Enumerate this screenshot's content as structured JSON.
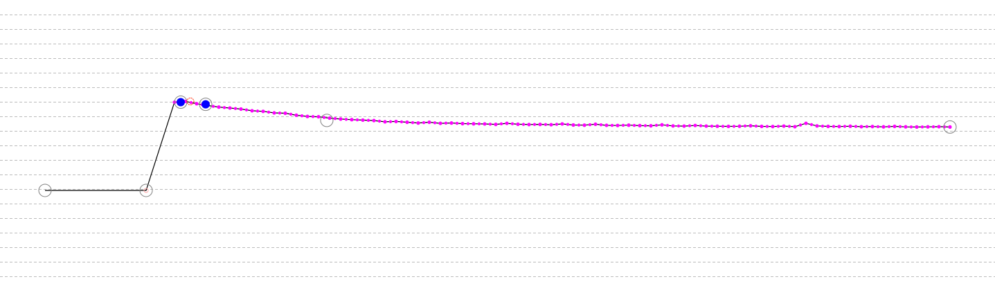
{
  "chart_data": {
    "type": "line",
    "title": "",
    "xlabel": "",
    "ylabel": "",
    "grid": "horizontal-dashed",
    "grid_count": 19,
    "xlim": [
      -6.5,
      137.2
    ],
    "ylim": [
      -6.0,
      12.67
    ],
    "colors": {
      "line": "#000000",
      "points": "#ff00ff",
      "highlight": "#0000ff",
      "ring": "#808080",
      "red_ring": "#ff2200",
      "grid": "#bbbbbb"
    },
    "series": [
      {
        "x": [
          0,
          14.6,
          18.7,
          20.3,
          21.9,
          23.5,
          25.1,
          26.7,
          28.3,
          29.9,
          31.5,
          33.1,
          34.7,
          36.3,
          37.9,
          39.5,
          41.1,
          42.7,
          44.3,
          45.9,
          47.5,
          49.1,
          50.7,
          52.3,
          53.9,
          55.5,
          57.1,
          58.7,
          60.3,
          61.9,
          63.5,
          65.1,
          66.7,
          68.3,
          69.9,
          71.5,
          73.1,
          74.7,
          76.3,
          77.9,
          79.5,
          81.1,
          82.7,
          84.3,
          85.9,
          87.5,
          89.1,
          90.7,
          92.3,
          93.9,
          95.5,
          97.1,
          98.7,
          100.3,
          101.9,
          103.5,
          105.1,
          106.7,
          108.3,
          109.9,
          111.5,
          113.1,
          114.7,
          116.3,
          117.9,
          119.5,
          121.1,
          122.7,
          124.3,
          125.9,
          127.5,
          129.1,
          130.7
        ],
        "y": [
          0.24,
          0.24,
          6.0,
          6.05,
          5.9,
          5.78,
          5.68,
          5.62,
          5.55,
          5.44,
          5.4,
          5.3,
          5.28,
          5.15,
          5.07,
          5.05,
          4.96,
          4.9,
          4.86,
          4.83,
          4.8,
          4.72,
          4.74,
          4.69,
          4.64,
          4.69,
          4.62,
          4.64,
          4.6,
          4.59,
          4.58,
          4.55,
          4.62,
          4.56,
          4.54,
          4.55,
          4.53,
          4.58,
          4.51,
          4.5,
          4.56,
          4.49,
          4.48,
          4.5,
          4.47,
          4.46,
          4.52,
          4.45,
          4.44,
          4.48,
          4.44,
          4.43,
          4.42,
          4.43,
          4.46,
          4.42,
          4.41,
          4.44,
          4.4,
          4.62,
          4.45,
          4.42,
          4.41,
          4.43,
          4.4,
          4.41,
          4.39,
          4.42,
          4.39,
          4.38,
          4.39,
          4.4,
          4.38
        ]
      }
    ],
    "markers": {
      "rings": [
        {
          "x": 0,
          "y": 0.24
        },
        {
          "x": 14.6,
          "y": 0.24
        },
        {
          "x": 19.6,
          "y": 6.0
        },
        {
          "x": 23.2,
          "y": 5.86
        },
        {
          "x": 40.7,
          "y": 4.81
        },
        {
          "x": 130.7,
          "y": 4.38
        }
      ],
      "highlights": [
        {
          "x": 19.6,
          "y": 6.0
        },
        {
          "x": 23.2,
          "y": 5.86
        }
      ],
      "red_rings": [
        {
          "x": 21.0,
          "y": 6.05
        }
      ]
    }
  }
}
